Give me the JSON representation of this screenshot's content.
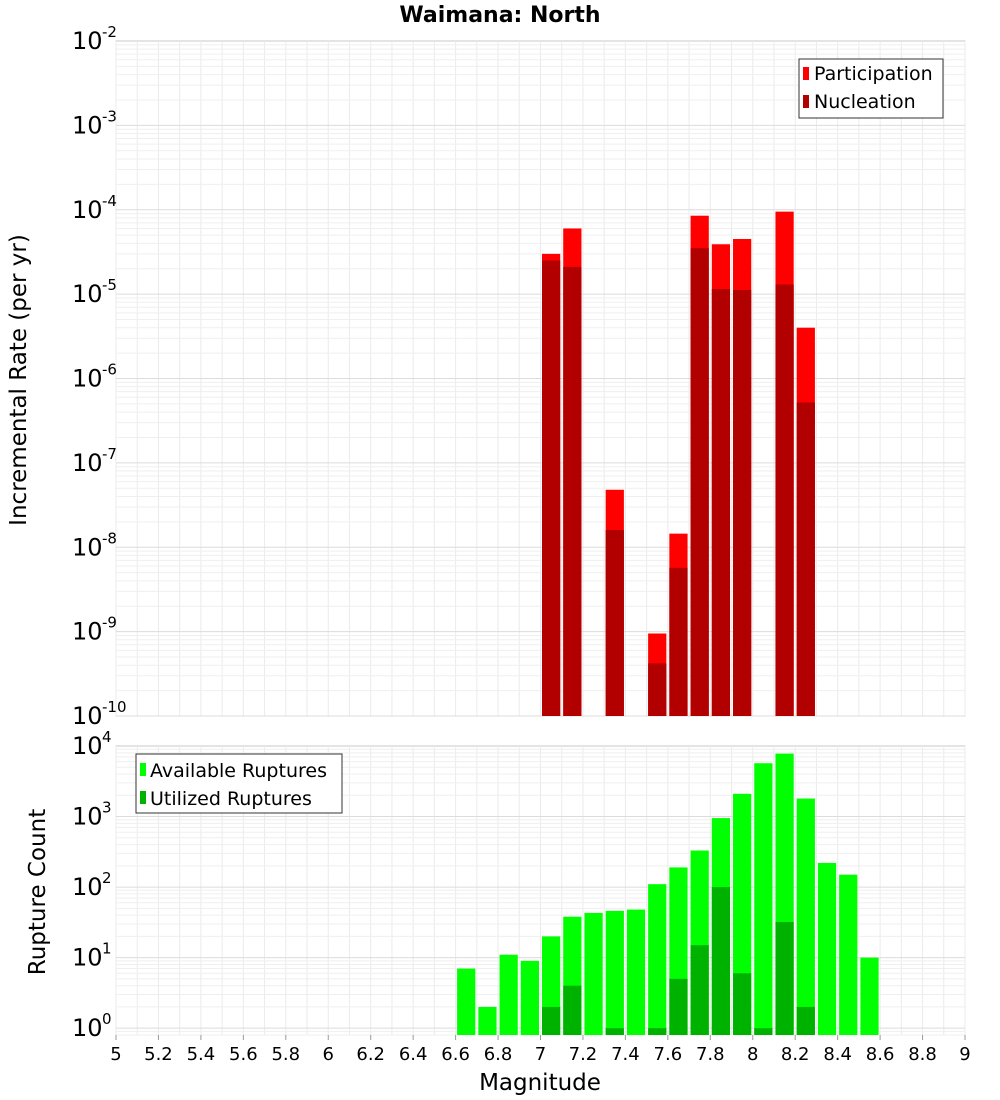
{
  "chart_data": {
    "title": "Waimana: North",
    "xlabel": "Magnitude",
    "x_ticks": [
      "5",
      "5.2",
      "5.4",
      "5.6",
      "5.8",
      "6",
      "6.2",
      "6.4",
      "6.6",
      "6.8",
      "7",
      "7.2",
      "7.4",
      "7.6",
      "7.8",
      "8",
      "8.2",
      "8.4",
      "8.6",
      "8.8",
      "9"
    ],
    "xlim": [
      5,
      9
    ],
    "bin_width": 0.1,
    "panels": [
      {
        "type": "bar",
        "ylabel": "Incremental Rate (per yr)",
        "yscale": "log",
        "ylim": [
          1e-10,
          0.01
        ],
        "y_tick_exponents": [
          "-10",
          "-9",
          "-8",
          "-7",
          "-6",
          "-5",
          "-4",
          "-3",
          "-2"
        ],
        "legend_position": "top-right",
        "series": [
          {
            "name": "Participation",
            "color": "#ff0000",
            "x": [
              7.05,
              7.15,
              7.35,
              7.55,
              7.65,
              7.75,
              7.85,
              7.95,
              8.15,
              8.25
            ],
            "values": [
              3e-05,
              6e-05,
              4.8e-08,
              9.5e-10,
              1.45e-08,
              8.5e-05,
              3.9e-05,
              4.5e-05,
              9.5e-05,
              4e-06
            ]
          },
          {
            "name": "Nucleation",
            "color": "#b20000",
            "x": [
              7.05,
              7.15,
              7.35,
              7.55,
              7.65,
              7.75,
              7.85,
              7.95,
              8.15,
              8.25
            ],
            "values": [
              2.5e-05,
              2.1e-05,
              1.6e-08,
              4.2e-10,
              5.7e-09,
              3.5e-05,
              1.15e-05,
              1.12e-05,
              1.3e-05,
              5.2e-07
            ]
          }
        ]
      },
      {
        "type": "bar",
        "ylabel": "Rupture Count",
        "yscale": "log",
        "ylim": [
          0.8,
          10000.0
        ],
        "y_tick_exponents": [
          "0",
          "1",
          "2",
          "3",
          "4"
        ],
        "legend_position": "top-left",
        "series": [
          {
            "name": "Available Ruptures",
            "color": "#00ff00",
            "x": [
              6.65,
              6.75,
              6.85,
              6.95,
              7.05,
              7.15,
              7.25,
              7.35,
              7.45,
              7.55,
              7.65,
              7.75,
              7.85,
              7.95,
              8.05,
              8.15,
              8.25,
              8.35,
              8.45,
              8.55
            ],
            "values": [
              7,
              2,
              11,
              9,
              20,
              38,
              43,
              46,
              48,
              110,
              190,
              330,
              950,
              2100,
              5700,
              7800,
              1800,
              220,
              150,
              10
            ]
          },
          {
            "name": "Utilized Ruptures",
            "color": "#00b200",
            "x": [
              7.05,
              7.15,
              7.35,
              7.55,
              7.65,
              7.75,
              7.85,
              7.95,
              8.05,
              8.15,
              8.25
            ],
            "values": [
              2,
              4,
              1,
              1,
              5,
              15,
              100,
              6,
              1,
              32,
              2
            ]
          }
        ]
      }
    ]
  }
}
